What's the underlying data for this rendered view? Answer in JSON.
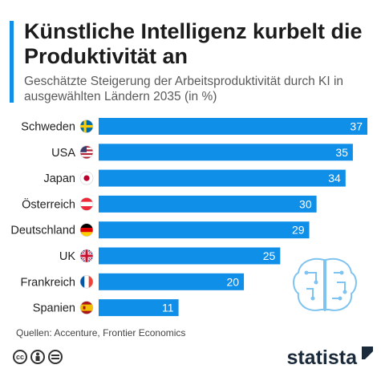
{
  "header": {
    "title": "Künstliche Intelligenz kurbelt die Produktivität an",
    "subtitle": "Geschätzte Steigerung der Arbeitsproduktivität durch KI in ausgewählten Ländern 2035 (in %)"
  },
  "chart_data": {
    "type": "bar",
    "orientation": "horizontal",
    "categories": [
      "Schweden",
      "USA",
      "Japan",
      "Österreich",
      "Deutschland",
      "UK",
      "Frankreich",
      "Spanien"
    ],
    "values": [
      37,
      35,
      34,
      30,
      29,
      25,
      20,
      11
    ],
    "xlim": [
      0,
      37
    ],
    "grid": false,
    "bar_color": "#0f8fe8",
    "label_color": "#ffffff"
  },
  "flags": [
    "sweden-flag-icon",
    "usa-flag-icon",
    "japan-flag-icon",
    "austria-flag-icon",
    "germany-flag-icon",
    "uk-flag-icon",
    "france-flag-icon",
    "spain-flag-icon"
  ],
  "footer": {
    "source": "Quellen: Accenture, Frontier Economics",
    "logo": "statista",
    "license_icons": [
      "cc-icon",
      "by-icon",
      "nd-icon"
    ]
  },
  "colors": {
    "accent": "#0f8fe8",
    "text": "#1f1f1f",
    "subtitle": "#5a5a5a"
  }
}
